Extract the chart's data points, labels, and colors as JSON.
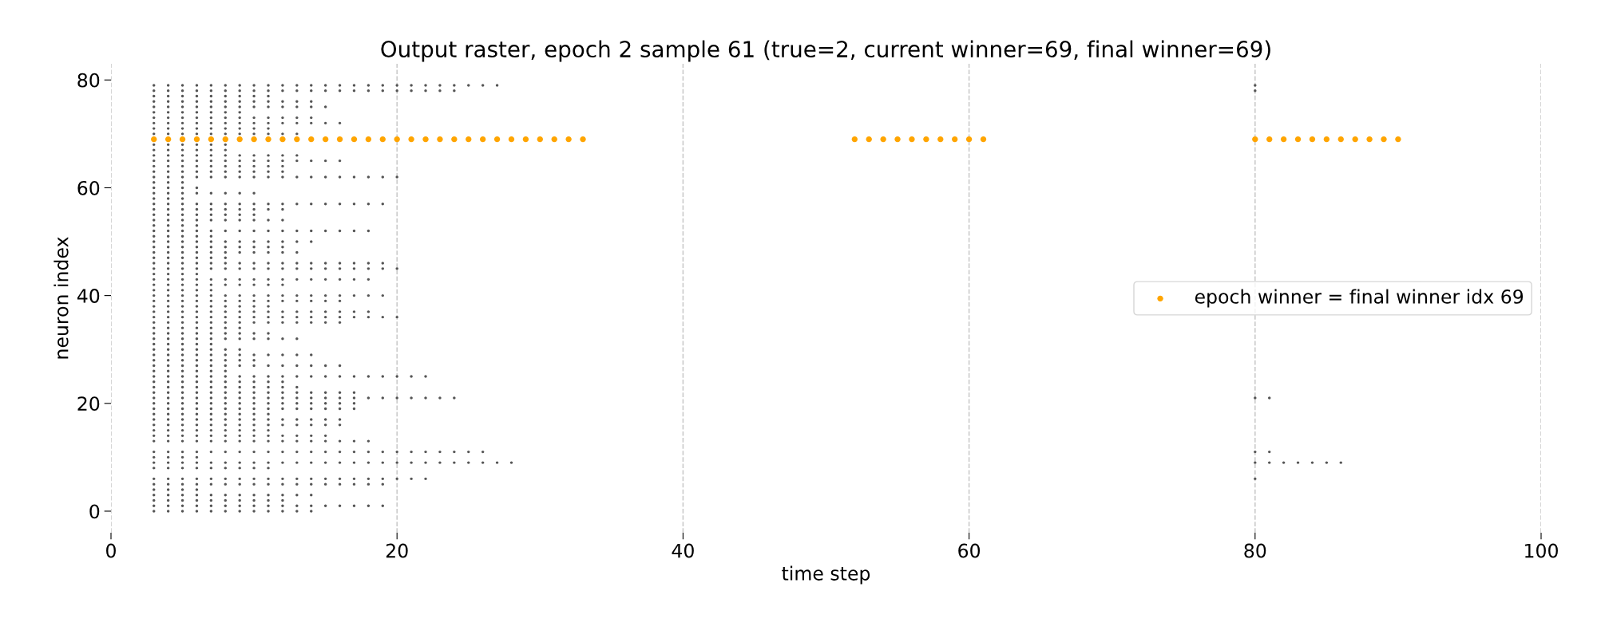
{
  "chart_data": {
    "type": "scatter",
    "title": "Output raster, epoch 2 sample 61 (true=2, current winner=69, final winner=69)",
    "xlabel": "time step",
    "ylabel": "neuron index",
    "xlim": [
      0,
      100
    ],
    "xticks": [
      0,
      20,
      40,
      60,
      80,
      100
    ],
    "ylim": [
      -4,
      83
    ],
    "yticks": [
      0,
      20,
      40,
      60,
      80
    ],
    "grid": "x",
    "legend": "right",
    "series": [
      {
        "color": "#555555",
        "x": [
          3,
          4,
          5,
          6,
          7,
          8,
          9,
          10,
          11,
          12,
          13,
          14
        ],
        "values": [
          0,
          0,
          0,
          0,
          0,
          0,
          0,
          0,
          0,
          0,
          0,
          0
        ]
      },
      {
        "color": "#555555",
        "x": [
          3,
          4,
          5,
          6,
          7,
          8,
          9,
          10,
          11,
          12,
          13,
          14,
          15,
          16,
          17,
          18,
          19
        ],
        "values": [
          1,
          1,
          1,
          1,
          1,
          1,
          1,
          1,
          1,
          1,
          1,
          1,
          1,
          1,
          1,
          1,
          1
        ]
      },
      {
        "color": "#555555",
        "x": [
          3,
          4,
          5,
          6,
          7,
          8,
          9,
          10,
          11,
          12
        ],
        "values": [
          2,
          2,
          2,
          2,
          2,
          2,
          2,
          2,
          2,
          2
        ]
      },
      {
        "color": "#555555",
        "x": [
          3,
          4,
          5,
          6,
          7,
          8,
          9,
          10,
          11,
          12,
          13,
          14
        ],
        "values": [
          3,
          3,
          3,
          3,
          3,
          3,
          3,
          3,
          3,
          3,
          3,
          3
        ]
      },
      {
        "color": "#555555",
        "x": [
          3,
          4,
          5,
          6
        ],
        "values": [
          4,
          4,
          4,
          4
        ]
      },
      {
        "color": "#555555",
        "x": [
          3,
          4,
          5,
          6,
          7,
          8,
          9,
          10,
          11,
          12,
          13,
          14,
          15,
          16,
          17,
          18,
          19
        ],
        "values": [
          5,
          5,
          5,
          5,
          5,
          5,
          5,
          5,
          5,
          5,
          5,
          5,
          5,
          5,
          5,
          5,
          5
        ]
      },
      {
        "color": "#555555",
        "x": [
          3,
          4,
          5,
          6,
          7,
          8,
          9,
          10,
          11,
          12,
          13,
          14,
          15,
          16,
          17,
          18,
          19,
          20,
          21,
          22,
          80
        ],
        "values": [
          6,
          6,
          6,
          6,
          6,
          6,
          6,
          6,
          6,
          6,
          6,
          6,
          6,
          6,
          6,
          6,
          6,
          6,
          6,
          6,
          6
        ]
      },
      {
        "color": "#555555",
        "x": [
          3,
          4,
          5,
          6,
          7,
          8,
          9,
          10,
          11
        ],
        "values": [
          8,
          8,
          8,
          8,
          8,
          8,
          8,
          8,
          8
        ]
      },
      {
        "color": "#555555",
        "x": [
          3,
          4,
          5,
          6,
          7,
          8,
          9,
          10,
          11,
          12,
          13,
          14,
          15,
          16,
          17,
          18,
          19,
          20,
          21,
          22,
          23,
          24,
          25,
          26,
          27,
          28,
          80,
          81,
          82,
          83,
          84,
          85,
          86
        ],
        "values": [
          9,
          9,
          9,
          9,
          9,
          9,
          9,
          9,
          9,
          9,
          9,
          9,
          9,
          9,
          9,
          9,
          9,
          9,
          9,
          9,
          9,
          9,
          9,
          9,
          9,
          9,
          9,
          9,
          9,
          9,
          9,
          9,
          9
        ]
      },
      {
        "color": "#555555",
        "x": [
          3,
          4,
          5,
          6
        ],
        "values": [
          10,
          10,
          10,
          10
        ]
      },
      {
        "color": "#555555",
        "x": [
          3,
          4,
          5,
          6,
          7,
          8,
          9,
          10,
          11,
          12,
          13,
          14,
          15,
          16,
          17,
          18,
          19,
          20,
          21,
          22,
          23,
          24,
          25,
          26,
          80,
          81
        ],
        "values": [
          11,
          11,
          11,
          11,
          11,
          11,
          11,
          11,
          11,
          11,
          11,
          11,
          11,
          11,
          11,
          11,
          11,
          11,
          11,
          11,
          11,
          11,
          11,
          11,
          11,
          11
        ]
      },
      {
        "color": "#555555",
        "x": [
          3,
          4,
          5,
          6,
          7,
          8,
          9,
          10,
          11,
          12,
          13,
          14,
          15,
          16,
          17,
          18
        ],
        "values": [
          13,
          13,
          13,
          13,
          13,
          13,
          13,
          13,
          13,
          13,
          13,
          13,
          13,
          13,
          13,
          13
        ]
      },
      {
        "color": "#555555",
        "x": [
          3,
          4,
          5,
          6,
          7,
          8,
          9,
          10,
          11,
          12,
          13,
          14,
          15
        ],
        "values": [
          14,
          14,
          14,
          14,
          14,
          14,
          14,
          14,
          14,
          14,
          14,
          14,
          14
        ]
      },
      {
        "color": "#555555",
        "x": [
          3,
          4,
          5,
          6,
          7,
          8,
          9,
          10,
          11
        ],
        "values": [
          15,
          15,
          15,
          15,
          15,
          15,
          15,
          15,
          15
        ]
      },
      {
        "color": "#555555",
        "x": [
          3,
          4,
          5,
          6,
          7,
          8,
          9,
          10,
          11,
          12,
          13,
          14,
          15,
          16
        ],
        "values": [
          16,
          16,
          16,
          16,
          16,
          16,
          16,
          16,
          16,
          16,
          16,
          16,
          16,
          16
        ]
      },
      {
        "color": "#555555",
        "x": [
          3,
          4,
          5,
          6,
          7,
          8,
          9,
          10,
          11,
          12,
          13,
          14,
          15,
          16
        ],
        "values": [
          17,
          17,
          17,
          17,
          17,
          17,
          17,
          17,
          17,
          17,
          17,
          17,
          17,
          17
        ]
      },
      {
        "color": "#555555",
        "x": [
          3,
          4,
          5,
          6,
          7,
          8,
          9,
          10,
          11
        ],
        "values": [
          18,
          18,
          18,
          18,
          18,
          18,
          18,
          18,
          18
        ]
      },
      {
        "color": "#555555",
        "x": [
          3,
          4,
          5,
          6,
          7,
          8,
          9,
          10,
          11,
          12,
          13,
          14,
          15,
          16,
          17
        ],
        "values": [
          19,
          19,
          19,
          19,
          19,
          19,
          19,
          19,
          19,
          19,
          19,
          19,
          19,
          19,
          19
        ]
      },
      {
        "color": "#555555",
        "x": [
          3,
          4,
          5,
          6,
          7,
          8,
          9,
          10,
          11,
          12,
          13,
          14,
          15,
          16,
          17
        ],
        "values": [
          20,
          20,
          20,
          20,
          20,
          20,
          20,
          20,
          20,
          20,
          20,
          20,
          20,
          20,
          20
        ]
      },
      {
        "color": "#555555",
        "x": [
          3,
          4,
          5,
          6,
          7,
          8,
          9,
          10,
          11,
          12,
          13,
          14,
          15,
          16,
          17,
          18,
          19,
          20,
          21,
          22,
          23,
          24,
          80,
          81
        ],
        "values": [
          21,
          21,
          21,
          21,
          21,
          21,
          21,
          21,
          21,
          21,
          21,
          21,
          21,
          21,
          21,
          21,
          21,
          21,
          21,
          21,
          21,
          21,
          21,
          21
        ]
      },
      {
        "color": "#555555",
        "x": [
          3,
          4,
          5,
          6,
          7,
          8,
          9,
          10,
          11,
          12,
          13,
          14,
          15,
          16,
          17
        ],
        "values": [
          22,
          22,
          22,
          22,
          22,
          22,
          22,
          22,
          22,
          22,
          22,
          22,
          22,
          22,
          22
        ]
      },
      {
        "color": "#555555",
        "x": [
          3,
          4,
          5,
          6,
          7,
          8,
          9,
          10,
          11,
          12,
          13
        ],
        "values": [
          23,
          23,
          23,
          23,
          23,
          23,
          23,
          23,
          23,
          23,
          23
        ]
      },
      {
        "color": "#555555",
        "x": [
          3,
          4,
          5,
          6,
          7,
          8,
          9,
          10,
          11,
          12
        ],
        "values": [
          24,
          24,
          24,
          24,
          24,
          24,
          24,
          24,
          24,
          24
        ]
      },
      {
        "color": "#555555",
        "x": [
          3,
          4,
          5,
          6,
          7,
          8,
          9,
          10,
          11,
          12,
          13,
          14,
          15,
          16,
          17,
          18,
          19,
          20,
          21,
          22
        ],
        "values": [
          25,
          25,
          25,
          25,
          25,
          25,
          25,
          25,
          25,
          25,
          25,
          25,
          25,
          25,
          25,
          25,
          25,
          25,
          25,
          25
        ]
      },
      {
        "color": "#555555",
        "x": [
          3,
          4,
          5,
          6,
          7,
          8
        ],
        "values": [
          26,
          26,
          26,
          26,
          26,
          26
        ]
      },
      {
        "color": "#555555",
        "x": [
          3,
          4,
          5,
          6,
          7,
          8,
          9,
          10,
          11,
          12,
          13,
          14,
          15,
          16
        ],
        "values": [
          27,
          27,
          27,
          27,
          27,
          27,
          27,
          27,
          27,
          27,
          27,
          27,
          27,
          27
        ]
      },
      {
        "color": "#555555",
        "x": [
          3,
          4,
          5,
          6,
          7,
          8,
          9,
          10
        ],
        "values": [
          28,
          28,
          28,
          28,
          28,
          28,
          28,
          28
        ]
      },
      {
        "color": "#555555",
        "x": [
          3,
          4,
          5,
          6,
          7,
          8,
          9,
          10,
          11,
          12,
          13,
          14
        ],
        "values": [
          29,
          29,
          29,
          29,
          29,
          29,
          29,
          29,
          29,
          29,
          29,
          29
        ]
      },
      {
        "color": "#555555",
        "x": [
          3,
          4,
          5,
          6,
          7,
          8,
          9
        ],
        "values": [
          30,
          30,
          30,
          30,
          30,
          30,
          30
        ]
      },
      {
        "color": "#555555",
        "x": [
          3,
          4,
          5,
          6,
          7
        ],
        "values": [
          31,
          31,
          31,
          31,
          31
        ]
      },
      {
        "color": "#555555",
        "x": [
          3,
          4,
          5,
          6,
          7,
          8,
          9,
          10,
          11,
          12,
          13
        ],
        "values": [
          32,
          32,
          32,
          32,
          32,
          32,
          32,
          32,
          32,
          32,
          32
        ]
      },
      {
        "color": "#555555",
        "x": [
          3,
          4,
          5,
          6,
          7,
          8,
          9,
          10,
          11
        ],
        "values": [
          33,
          33,
          33,
          33,
          33,
          33,
          33,
          33,
          33
        ]
      },
      {
        "color": "#555555",
        "x": [
          3,
          4,
          5,
          6,
          7,
          8,
          9
        ],
        "values": [
          34,
          34,
          34,
          34,
          34,
          34,
          34
        ]
      },
      {
        "color": "#555555",
        "x": [
          3,
          4,
          5,
          6,
          7,
          8,
          9,
          10,
          11,
          12,
          13,
          14,
          15,
          16
        ],
        "values": [
          35,
          35,
          35,
          35,
          35,
          35,
          35,
          35,
          35,
          35,
          35,
          35,
          35,
          35
        ]
      },
      {
        "color": "#555555",
        "x": [
          3,
          4,
          5,
          6,
          7,
          8,
          9,
          10,
          11,
          12,
          13,
          14,
          15,
          16,
          17,
          18,
          19,
          20
        ],
        "values": [
          36,
          36,
          36,
          36,
          36,
          36,
          36,
          36,
          36,
          36,
          36,
          36,
          36,
          36,
          36,
          36,
          36,
          36
        ]
      },
      {
        "color": "#555555",
        "x": [
          3,
          4,
          5,
          6,
          7,
          8,
          9,
          10,
          11,
          12,
          13,
          14,
          15,
          16,
          17,
          18
        ],
        "values": [
          37,
          37,
          37,
          37,
          37,
          37,
          37,
          37,
          37,
          37,
          37,
          37,
          37,
          37,
          37,
          37
        ]
      },
      {
        "color": "#555555",
        "x": [
          3,
          4,
          5,
          6,
          7,
          8,
          9,
          10,
          11
        ],
        "values": [
          38,
          38,
          38,
          38,
          38,
          38,
          38,
          38,
          38
        ]
      },
      {
        "color": "#555555",
        "x": [
          3,
          4,
          5,
          6,
          7,
          8,
          9,
          10,
          11,
          12,
          13,
          14,
          15,
          16
        ],
        "values": [
          39,
          39,
          39,
          39,
          39,
          39,
          39,
          39,
          39,
          39,
          39,
          39,
          39,
          39
        ]
      },
      {
        "color": "#555555",
        "x": [
          3,
          4,
          5,
          6,
          7,
          8,
          9,
          10,
          11,
          12,
          13,
          14,
          15,
          16,
          17,
          18,
          19
        ],
        "values": [
          40,
          40,
          40,
          40,
          40,
          40,
          40,
          40,
          40,
          40,
          40,
          40,
          40,
          40,
          40,
          40,
          40
        ]
      },
      {
        "color": "#555555",
        "x": [
          3,
          4,
          5,
          6,
          7
        ],
        "values": [
          41,
          41,
          41,
          41,
          41
        ]
      },
      {
        "color": "#555555",
        "x": [
          3,
          4,
          5,
          6,
          7,
          8,
          9,
          10,
          11,
          12
        ],
        "values": [
          42,
          42,
          42,
          42,
          42,
          42,
          42,
          42,
          42,
          42
        ]
      },
      {
        "color": "#555555",
        "x": [
          3,
          4,
          5,
          6,
          7,
          8,
          9,
          10,
          11,
          12,
          13,
          14,
          15,
          16,
          17,
          18
        ],
        "values": [
          43,
          43,
          43,
          43,
          43,
          43,
          43,
          43,
          43,
          43,
          43,
          43,
          43,
          43,
          43,
          43
        ]
      },
      {
        "color": "#555555",
        "x": [
          3,
          4,
          5,
          6
        ],
        "values": [
          44,
          44,
          44,
          44
        ]
      },
      {
        "color": "#555555",
        "x": [
          3,
          4,
          5,
          6,
          7,
          8,
          9,
          10,
          11,
          12,
          13,
          14,
          15,
          16,
          17,
          18,
          19,
          20
        ],
        "values": [
          45,
          45,
          45,
          45,
          45,
          45,
          45,
          45,
          45,
          45,
          45,
          45,
          45,
          45,
          45,
          45,
          45,
          45
        ]
      },
      {
        "color": "#555555",
        "x": [
          3,
          4,
          5,
          6,
          7,
          8,
          9,
          10,
          11,
          12,
          13,
          14,
          15,
          16,
          17,
          18,
          19
        ],
        "values": [
          46,
          46,
          46,
          46,
          46,
          46,
          46,
          46,
          46,
          46,
          46,
          46,
          46,
          46,
          46,
          46,
          46
        ]
      },
      {
        "color": "#555555",
        "x": [
          3,
          4,
          5,
          6,
          7,
          8
        ],
        "values": [
          47,
          47,
          47,
          47,
          47,
          47
        ]
      },
      {
        "color": "#555555",
        "x": [
          3,
          4,
          5,
          6,
          7,
          8,
          9,
          10,
          11,
          12,
          13
        ],
        "values": [
          48,
          48,
          48,
          48,
          48,
          48,
          48,
          48,
          48,
          48,
          48
        ]
      },
      {
        "color": "#555555",
        "x": [
          3,
          4,
          5,
          6,
          7,
          8,
          9,
          10,
          11,
          12
        ],
        "values": [
          49,
          49,
          49,
          49,
          49,
          49,
          49,
          49,
          49,
          49
        ]
      },
      {
        "color": "#555555",
        "x": [
          3,
          4,
          5,
          6,
          7,
          8,
          9,
          10,
          11,
          12,
          13,
          14
        ],
        "values": [
          50,
          50,
          50,
          50,
          50,
          50,
          50,
          50,
          50,
          50,
          50,
          50
        ]
      },
      {
        "color": "#555555",
        "x": [
          3,
          4,
          5,
          6,
          7
        ],
        "values": [
          51,
          51,
          51,
          51,
          51
        ]
      },
      {
        "color": "#555555",
        "x": [
          3,
          4,
          5,
          6,
          7,
          8,
          9,
          10,
          11,
          12,
          13,
          14,
          15,
          16,
          17,
          18
        ],
        "values": [
          52,
          52,
          52,
          52,
          52,
          52,
          52,
          52,
          52,
          52,
          52,
          52,
          52,
          52,
          52,
          52
        ]
      },
      {
        "color": "#555555",
        "x": [
          3,
          4,
          5,
          6
        ],
        "values": [
          53,
          53,
          53,
          53
        ]
      },
      {
        "color": "#555555",
        "x": [
          3,
          4,
          5,
          6,
          7,
          8,
          9,
          10,
          11,
          12
        ],
        "values": [
          54,
          54,
          54,
          54,
          54,
          54,
          54,
          54,
          54,
          54
        ]
      },
      {
        "color": "#555555",
        "x": [
          3,
          4,
          5,
          6,
          7,
          8,
          9,
          10
        ],
        "values": [
          55,
          55,
          55,
          55,
          55,
          55,
          55,
          55
        ]
      },
      {
        "color": "#555555",
        "x": [
          3,
          4,
          5,
          6,
          7,
          8,
          9,
          10,
          11,
          12
        ],
        "values": [
          56,
          56,
          56,
          56,
          56,
          56,
          56,
          56,
          56,
          56
        ]
      },
      {
        "color": "#555555",
        "x": [
          3,
          4,
          5,
          6,
          7,
          8,
          9,
          10,
          11,
          12,
          13,
          14,
          15,
          16,
          17,
          18,
          19
        ],
        "values": [
          57,
          57,
          57,
          57,
          57,
          57,
          57,
          57,
          57,
          57,
          57,
          57,
          57,
          57,
          57,
          57,
          57
        ]
      },
      {
        "color": "#555555",
        "x": [
          3,
          4,
          5
        ],
        "values": [
          58,
          58,
          58
        ]
      },
      {
        "color": "#555555",
        "x": [
          3,
          4,
          5,
          6,
          7,
          8,
          9,
          10
        ],
        "values": [
          59,
          59,
          59,
          59,
          59,
          59,
          59,
          59
        ]
      },
      {
        "color": "#555555",
        "x": [
          3,
          4,
          5,
          6
        ],
        "values": [
          60,
          60,
          60,
          60
        ]
      },
      {
        "color": "#555555",
        "x": [
          3,
          4,
          5
        ],
        "values": [
          61,
          61,
          61
        ]
      },
      {
        "color": "#555555",
        "x": [
          3,
          4,
          5,
          6,
          7,
          8,
          9,
          10,
          11,
          12,
          13,
          14,
          15,
          16,
          17,
          18,
          19,
          20
        ],
        "values": [
          62,
          62,
          62,
          62,
          62,
          62,
          62,
          62,
          62,
          62,
          62,
          62,
          62,
          62,
          62,
          62,
          62,
          62
        ]
      },
      {
        "color": "#555555",
        "x": [
          3,
          4,
          5,
          6,
          7,
          8,
          9,
          10,
          11,
          12
        ],
        "values": [
          63,
          63,
          63,
          63,
          63,
          63,
          63,
          63,
          63,
          63
        ]
      },
      {
        "color": "#555555",
        "x": [
          3,
          4,
          5,
          6,
          7,
          8,
          9,
          10,
          11,
          12
        ],
        "values": [
          64,
          64,
          64,
          64,
          64,
          64,
          64,
          64,
          64,
          64
        ]
      },
      {
        "color": "#555555",
        "x": [
          3,
          4,
          5,
          6,
          7,
          8,
          9,
          10,
          11,
          12,
          13,
          14,
          15,
          16
        ],
        "values": [
          65,
          65,
          65,
          65,
          65,
          65,
          65,
          65,
          65,
          65,
          65,
          65,
          65,
          65
        ]
      },
      {
        "color": "#555555",
        "x": [
          3,
          4,
          5,
          6,
          7,
          8,
          9,
          10,
          11,
          12,
          13
        ],
        "values": [
          66,
          66,
          66,
          66,
          66,
          66,
          66,
          66,
          66,
          66,
          66
        ]
      },
      {
        "color": "#555555",
        "x": [
          3,
          4,
          5,
          6,
          7,
          8
        ],
        "values": [
          67,
          67,
          67,
          67,
          67,
          67
        ]
      },
      {
        "color": "#555555",
        "x": [
          3,
          4,
          5,
          6,
          7,
          8
        ],
        "values": [
          68,
          68,
          68,
          68,
          68,
          68
        ]
      },
      {
        "color": "#555555",
        "x": [
          3,
          4,
          5,
          6,
          7,
          8,
          9,
          10,
          11,
          12,
          13
        ],
        "values": [
          70,
          70,
          70,
          70,
          70,
          70,
          70,
          70,
          70,
          70,
          70
        ]
      },
      {
        "color": "#555555",
        "x": [
          3,
          4,
          5,
          6,
          7,
          8,
          9,
          10,
          11
        ],
        "values": [
          71,
          71,
          71,
          71,
          71,
          71,
          71,
          71,
          71
        ]
      },
      {
        "color": "#555555",
        "x": [
          3,
          4,
          5,
          6,
          7,
          8,
          9,
          10,
          11,
          12,
          13,
          14,
          15,
          16
        ],
        "values": [
          72,
          72,
          72,
          72,
          72,
          72,
          72,
          72,
          72,
          72,
          72,
          72,
          72,
          72
        ]
      },
      {
        "color": "#555555",
        "x": [
          3,
          4,
          5,
          6,
          7,
          8,
          9,
          10,
          11,
          12,
          13,
          14
        ],
        "values": [
          73,
          73,
          73,
          73,
          73,
          73,
          73,
          73,
          73,
          73,
          73,
          73
        ]
      },
      {
        "color": "#555555",
        "x": [
          3,
          4,
          5,
          6,
          7,
          8,
          9
        ],
        "values": [
          74,
          74,
          74,
          74,
          74,
          74,
          74
        ]
      },
      {
        "color": "#555555",
        "x": [
          3,
          4,
          5,
          6,
          7,
          8,
          9,
          10,
          11,
          12,
          13,
          14,
          15
        ],
        "values": [
          75,
          75,
          75,
          75,
          75,
          75,
          75,
          75,
          75,
          75,
          75,
          75,
          75
        ]
      },
      {
        "color": "#555555",
        "x": [
          3,
          4,
          5,
          6,
          7,
          8,
          9,
          10,
          11,
          12,
          13,
          14
        ],
        "values": [
          76,
          76,
          76,
          76,
          76,
          76,
          76,
          76,
          76,
          76,
          76,
          76
        ]
      },
      {
        "color": "#555555",
        "x": [
          3,
          4,
          5,
          6,
          7,
          8,
          9,
          10,
          11
        ],
        "values": [
          77,
          77,
          77,
          77,
          77,
          77,
          77,
          77,
          77
        ]
      },
      {
        "color": "#555555",
        "x": [
          3,
          4,
          5,
          6,
          7,
          8,
          9,
          10,
          11,
          12,
          13,
          14,
          15,
          16,
          17,
          18,
          19,
          20,
          21,
          22,
          23,
          24,
          80
        ],
        "values": [
          78,
          78,
          78,
          78,
          78,
          78,
          78,
          78,
          78,
          78,
          78,
          78,
          78,
          78,
          78,
          78,
          78,
          78,
          78,
          78,
          78,
          78,
          78
        ]
      },
      {
        "color": "#555555",
        "x": [
          3,
          4,
          5,
          6,
          7,
          8,
          9,
          10,
          11,
          12,
          13,
          14,
          15,
          16,
          17,
          18,
          19,
          20,
          21,
          22,
          23,
          24,
          25,
          26,
          27,
          80
        ],
        "values": [
          79,
          79,
          79,
          79,
          79,
          79,
          79,
          79,
          79,
          79,
          79,
          79,
          79,
          79,
          79,
          79,
          79,
          79,
          79,
          79,
          79,
          79,
          79,
          79,
          79,
          79
        ]
      },
      {
        "name": "epoch winner = final winner idx 69",
        "color": "#ffa500",
        "x": [
          3,
          4,
          5,
          6,
          7,
          8,
          9,
          10,
          11,
          12,
          13,
          14,
          15,
          16,
          17,
          18,
          19,
          20,
          21,
          22,
          23,
          24,
          25,
          26,
          27,
          28,
          29,
          30,
          31,
          32,
          33,
          52,
          53,
          54,
          55,
          56,
          57,
          58,
          59,
          60,
          61,
          80,
          81,
          82,
          83,
          84,
          85,
          86,
          87,
          88,
          89,
          90
        ],
        "values": [
          69,
          69,
          69,
          69,
          69,
          69,
          69,
          69,
          69,
          69,
          69,
          69,
          69,
          69,
          69,
          69,
          69,
          69,
          69,
          69,
          69,
          69,
          69,
          69,
          69,
          69,
          69,
          69,
          69,
          69,
          69,
          69,
          69,
          69,
          69,
          69,
          69,
          69,
          69,
          69,
          69,
          69,
          69,
          69,
          69,
          69,
          69,
          69,
          69,
          69,
          69,
          69
        ]
      }
    ]
  }
}
